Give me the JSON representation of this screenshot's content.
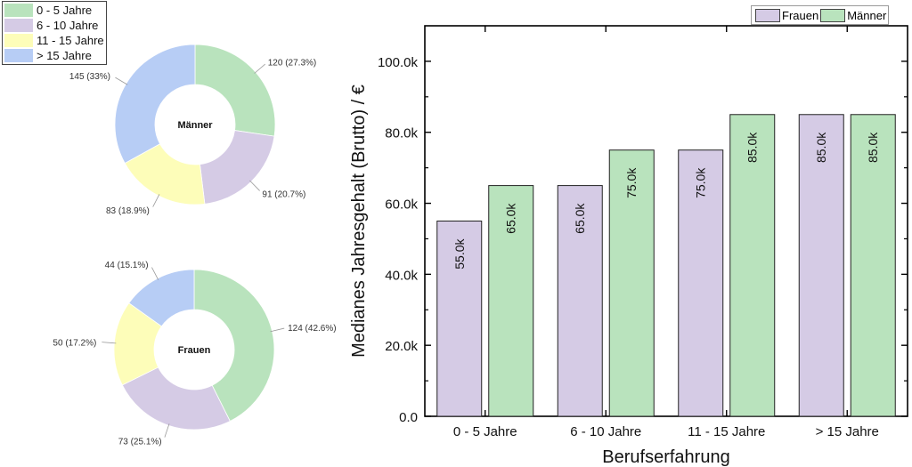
{
  "colors": {
    "c0": "#b9e3bd",
    "c1": "#d5cbe5",
    "c2": "#fdfdb9",
    "c3": "#b7cdf5",
    "frauen": "#d5cbe5",
    "maenner": "#b9e3bd"
  },
  "legend": [
    "0 - 5 Jahre",
    "6 - 10 Jahre",
    "11 - 15 Jahre",
    "> 15 Jahre"
  ],
  "chart_data": [
    {
      "type": "pie",
      "title": "Männer",
      "donut": true,
      "categories": [
        "0 - 5 Jahre",
        "6 - 10 Jahre",
        "11 - 15 Jahre",
        "> 15 Jahre"
      ],
      "values": [
        120,
        91,
        83,
        145
      ],
      "labels": [
        "120 (27.3%)",
        "91 (20.7%)",
        "83 (18.9%)",
        "145 (33%)"
      ]
    },
    {
      "type": "pie",
      "title": "Frauen",
      "donut": true,
      "categories": [
        "0 - 5 Jahre",
        "6 - 10 Jahre",
        "11 - 15 Jahre",
        "> 15 Jahre"
      ],
      "values": [
        124,
        73,
        50,
        44
      ],
      "labels": [
        "124 (42.6%)",
        "73 (25.1%)",
        "50 (17.2%)",
        "44 (15.1%)"
      ]
    },
    {
      "type": "bar",
      "categories": [
        "0 - 5 Jahre",
        "6 - 10 Jahre",
        "11 - 15 Jahre",
        "> 15 Jahre"
      ],
      "series": [
        {
          "name": "Frauen",
          "values": [
            55000,
            65000,
            75000,
            85000
          ],
          "labels": [
            "55.0k",
            "65.0k",
            "75.0k",
            "85.0k"
          ]
        },
        {
          "name": "Männer",
          "values": [
            65000,
            75000,
            85000,
            85000
          ],
          "labels": [
            "65.0k",
            "75.0k",
            "85.0k",
            "85.0k"
          ]
        }
      ],
      "xlabel": "Berufserfahrung",
      "ylabel": "Medianes Jahresgehalt (Brutto) / €",
      "ylim": [
        0,
        110000
      ],
      "yticks": [
        0,
        20000,
        40000,
        60000,
        80000,
        100000
      ],
      "ytick_labels": [
        "0.0",
        "20.0k",
        "40.0k",
        "60.0k",
        "80.0k",
        "100.0k"
      ],
      "legend_position": "top-right",
      "grid": false
    }
  ]
}
